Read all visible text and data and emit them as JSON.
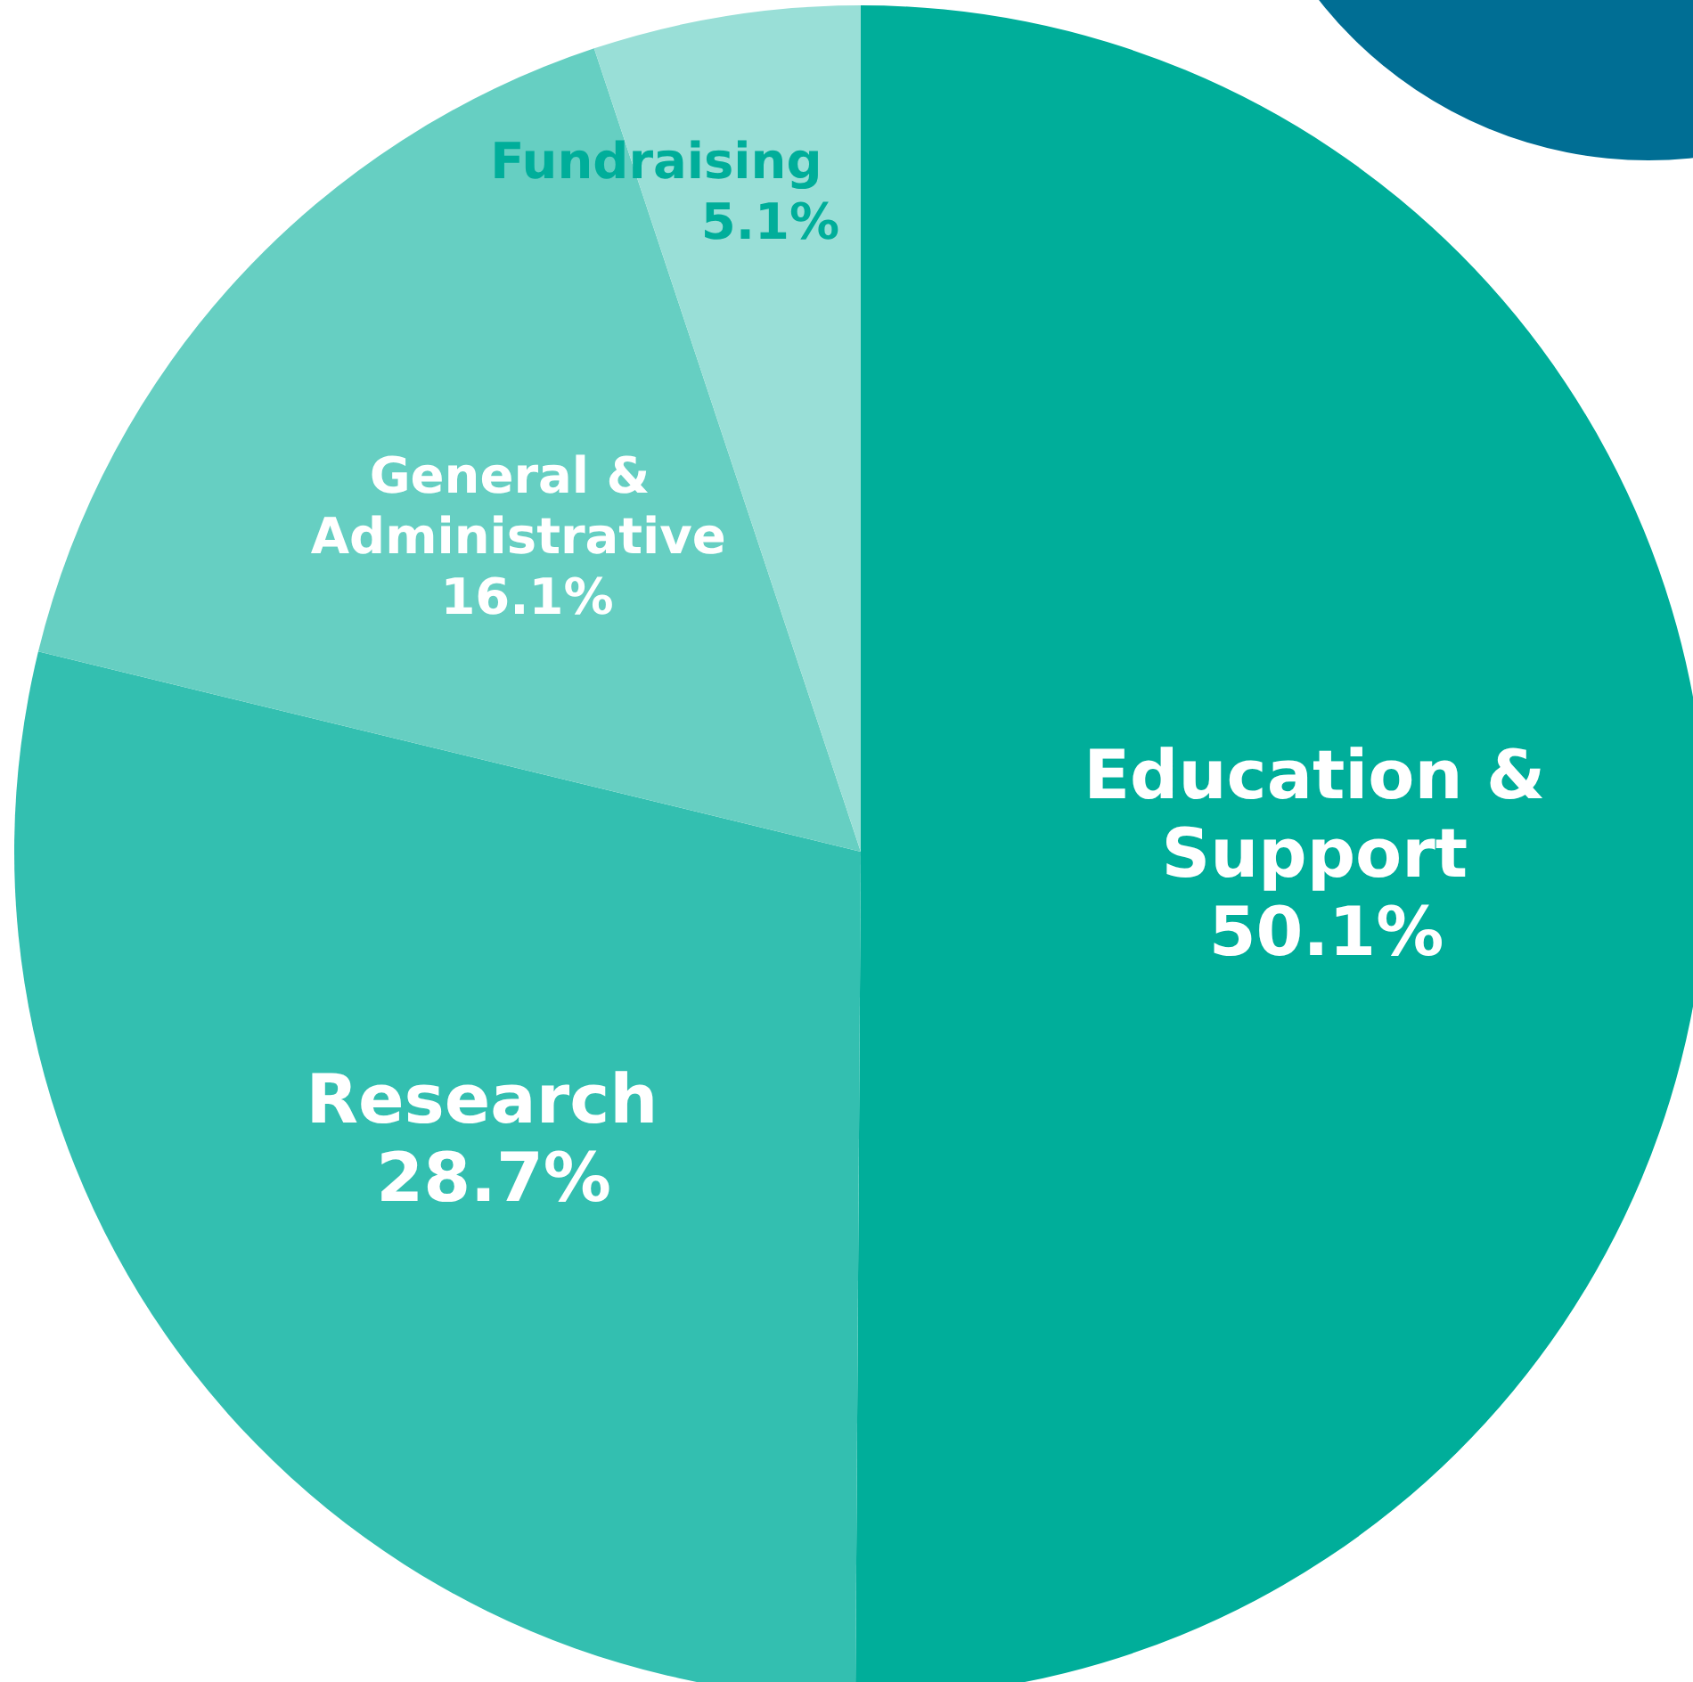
{
  "chart_data": {
    "type": "pie",
    "categories": [
      "Education & Support",
      "Research",
      "General & Administrative",
      "Fundraising"
    ],
    "values": [
      50.1,
      28.7,
      16.1,
      5.1
    ],
    "value_labels": [
      "50.1%",
      "28.7%",
      "16.1%",
      "5.1%"
    ],
    "colors": [
      "#00ae9a",
      "#33bfb0",
      "#66cfc2",
      "#99dfd7"
    ],
    "legend": false
  }
}
